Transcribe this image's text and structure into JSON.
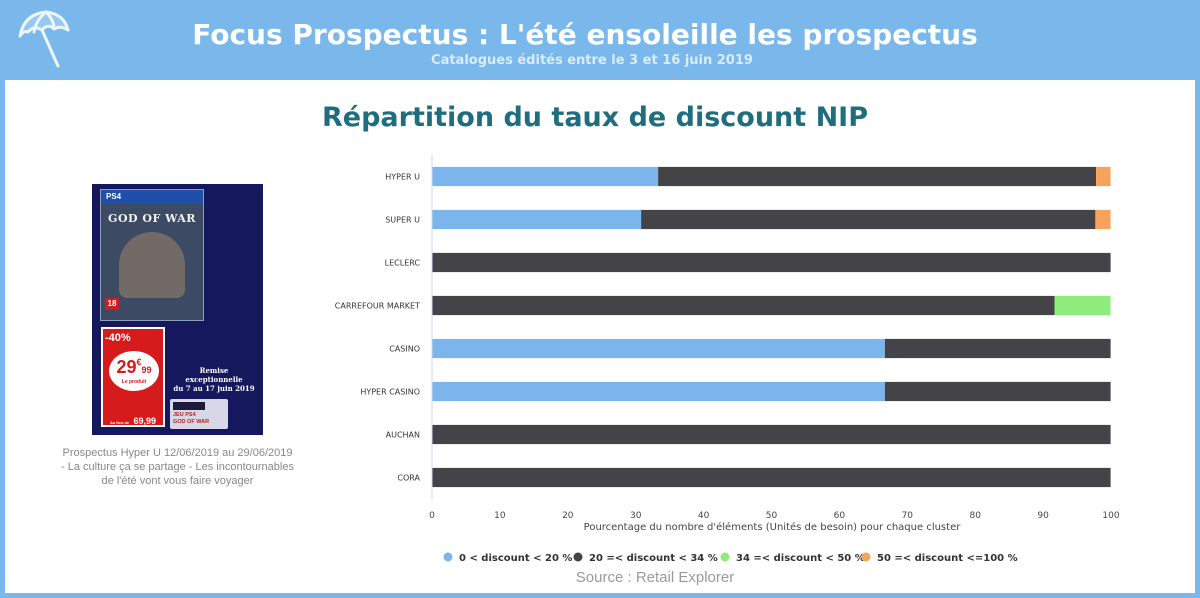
{
  "header": {
    "title": "Focus Prospectus : L'été ensoleille les prospectus",
    "subtitle": "Catalogues édités entre le 3 et 16 juin 2019",
    "logo_icon": "umbrella-icon"
  },
  "promo": {
    "game_title": "GOD OF WAR",
    "platform": "PS4",
    "age_rating": "18",
    "discount": "-40%",
    "price_main": "29",
    "price_cents": "99",
    "price_currency": "€",
    "price_unit": "Le produit",
    "old_price_prefix": "Au lieu de",
    "old_price": "69,99",
    "offer_line1": "Remise",
    "offer_line2": "exceptionnelle",
    "offer_line3": "du 7 au 17 juin 2019",
    "product_label1": "JEU PS4",
    "product_label2": "GOD OF WAR",
    "caption": "Prospectus Hyper U 12/06/2019 au 29/06/2019 - La culture ça se partage - Les incontournables de l'été vont vous faire voyager"
  },
  "source": "Source : Retail Explorer",
  "chart_data": {
    "type": "bar",
    "orientation": "horizontal",
    "stacked": true,
    "title": "Répartition du taux de discount NIP",
    "xlabel": "Pourcentage du nombre d'éléments (Unités de besoin) pour chaque cluster",
    "xlim": [
      0,
      100
    ],
    "xticks": [
      "0",
      "10",
      "20",
      "30",
      "40",
      "50",
      "60",
      "70",
      "80",
      "90",
      "100"
    ],
    "categories": [
      "HYPER U",
      "SUPER U",
      "LECLERC",
      "CARREFOUR MARKET",
      "CASINO",
      "HYPER CASINO",
      "AUCHAN",
      "CORA"
    ],
    "series": [
      {
        "name": "0 < discount < 20 %",
        "color": "#7cb5ec",
        "values": [
          33.3,
          30.8,
          0,
          0,
          66.7,
          66.7,
          0,
          0
        ]
      },
      {
        "name": "20 =< discount < 34 %",
        "color": "#434348",
        "values": [
          64.5,
          66.9,
          100,
          91.7,
          33.3,
          33.3,
          100,
          100
        ]
      },
      {
        "name": "34 =< discount < 50 %",
        "color": "#90ed7d",
        "values": [
          0,
          0,
          0,
          8.3,
          0,
          0,
          0,
          0
        ]
      },
      {
        "name": "50 =< discount <=100 %",
        "color": "#f7a35c",
        "values": [
          2.2,
          2.3,
          0,
          0,
          0,
          0,
          0,
          0
        ]
      }
    ],
    "legend_position": "bottom",
    "grid": false
  }
}
